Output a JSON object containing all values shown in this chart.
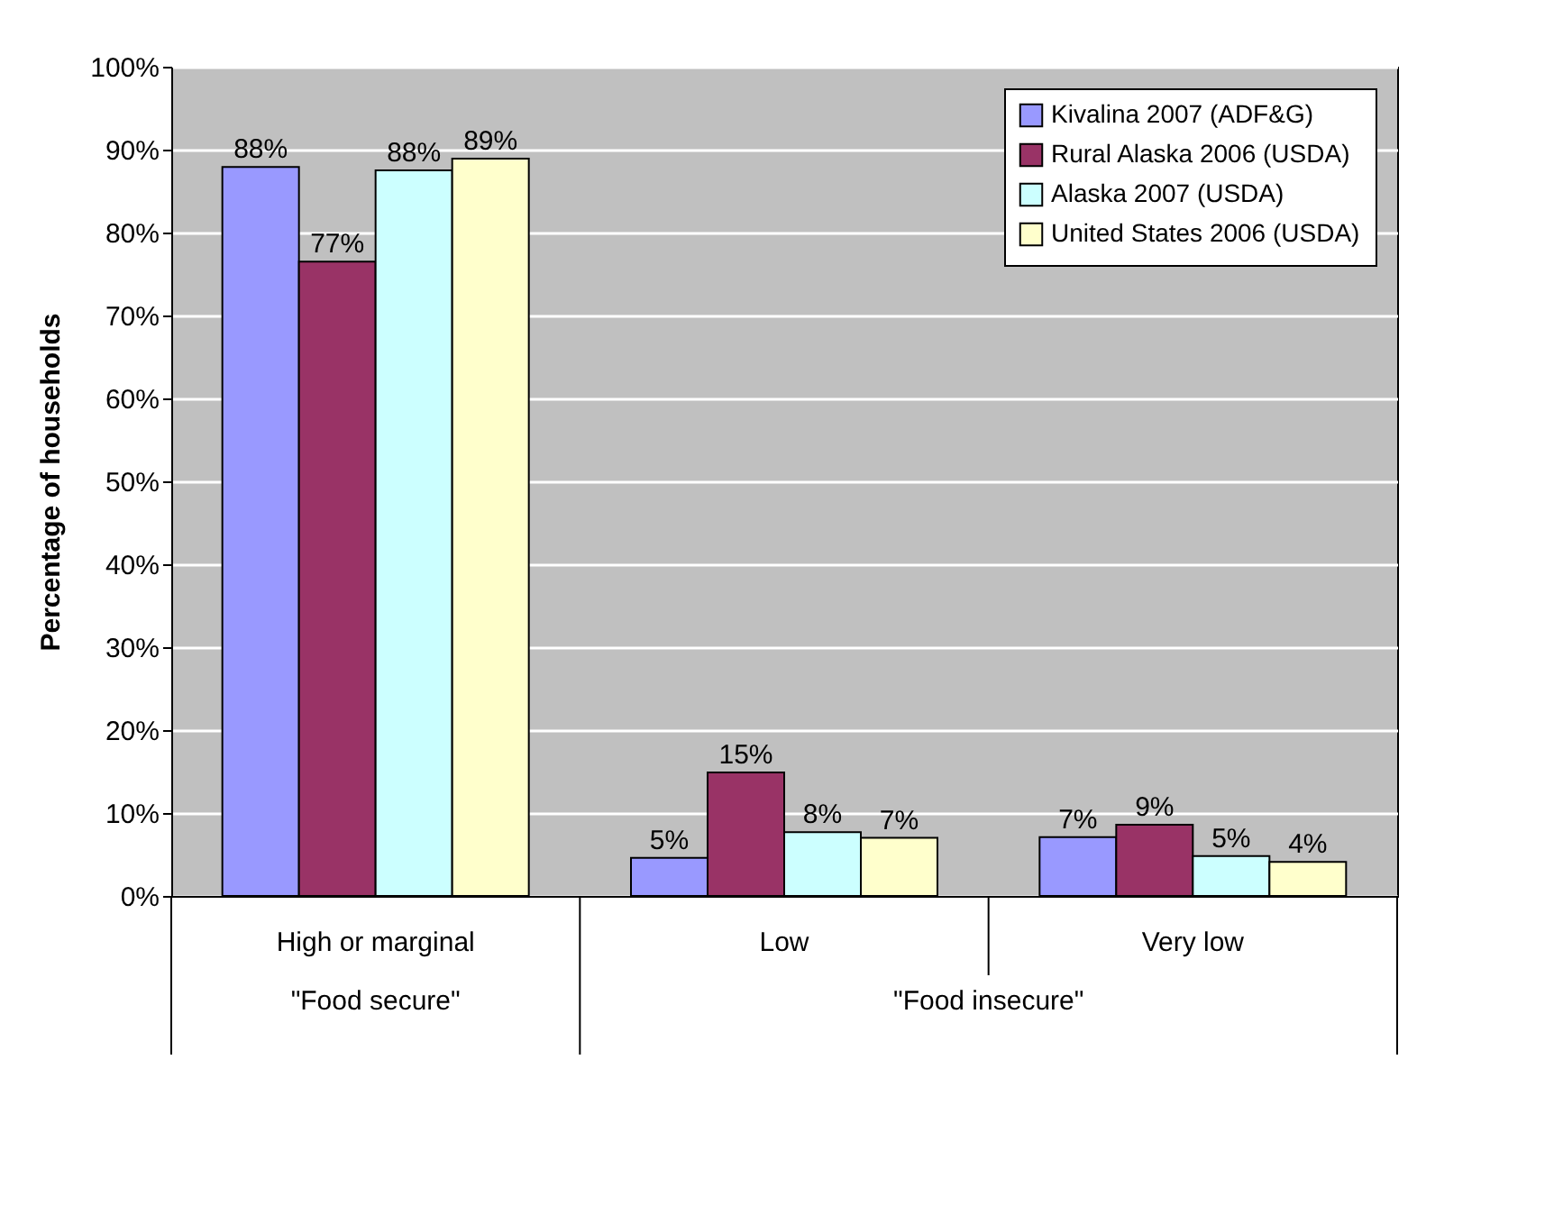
{
  "chart_data": {
    "type": "bar",
    "ylabel": "Percentage of households",
    "categories": [
      "High or marginal",
      "Low",
      "Very low"
    ],
    "series": [
      {
        "name": "Kivalina 2007 (ADF&G)",
        "color": "#9999ff",
        "values": [
          87.9,
          4.6,
          7.1
        ],
        "value_labels": [
          "88%",
          "5%",
          "7%"
        ]
      },
      {
        "name": "Rural Alaska 2006 (USDA)",
        "color": "#993366",
        "values": [
          76.5,
          14.9,
          8.6
        ],
        "value_labels": [
          "77%",
          "15%",
          "9%"
        ]
      },
      {
        "name": "Alaska 2007 (USDA)",
        "color": "#ccffff",
        "values": [
          87.5,
          7.7,
          4.8
        ],
        "value_labels": [
          "88%",
          "8%",
          "5%"
        ]
      },
      {
        "name": "United States 2006 (USDA)",
        "color": "#ffffcc",
        "values": [
          88.9,
          7.0,
          4.1
        ],
        "value_labels": [
          "89%",
          "7%",
          "4%"
        ]
      }
    ],
    "ylim": [
      0,
      100
    ],
    "yticks": [
      {
        "value": 0,
        "label": "0%"
      },
      {
        "value": 10,
        "label": "10%"
      },
      {
        "value": 20,
        "label": "20%"
      },
      {
        "value": 30,
        "label": "30%"
      },
      {
        "value": 40,
        "label": "40%"
      },
      {
        "value": 50,
        "label": "50%"
      },
      {
        "value": 60,
        "label": "60%"
      },
      {
        "value": 70,
        "label": "70%"
      },
      {
        "value": 80,
        "label": "80%"
      },
      {
        "value": 90,
        "label": "90%"
      },
      {
        "value": 100,
        "label": "100%"
      }
    ],
    "annotations": [
      "\"Food secure\"",
      "\"Food insecure\""
    ],
    "grid": "y",
    "legend": "top right"
  }
}
